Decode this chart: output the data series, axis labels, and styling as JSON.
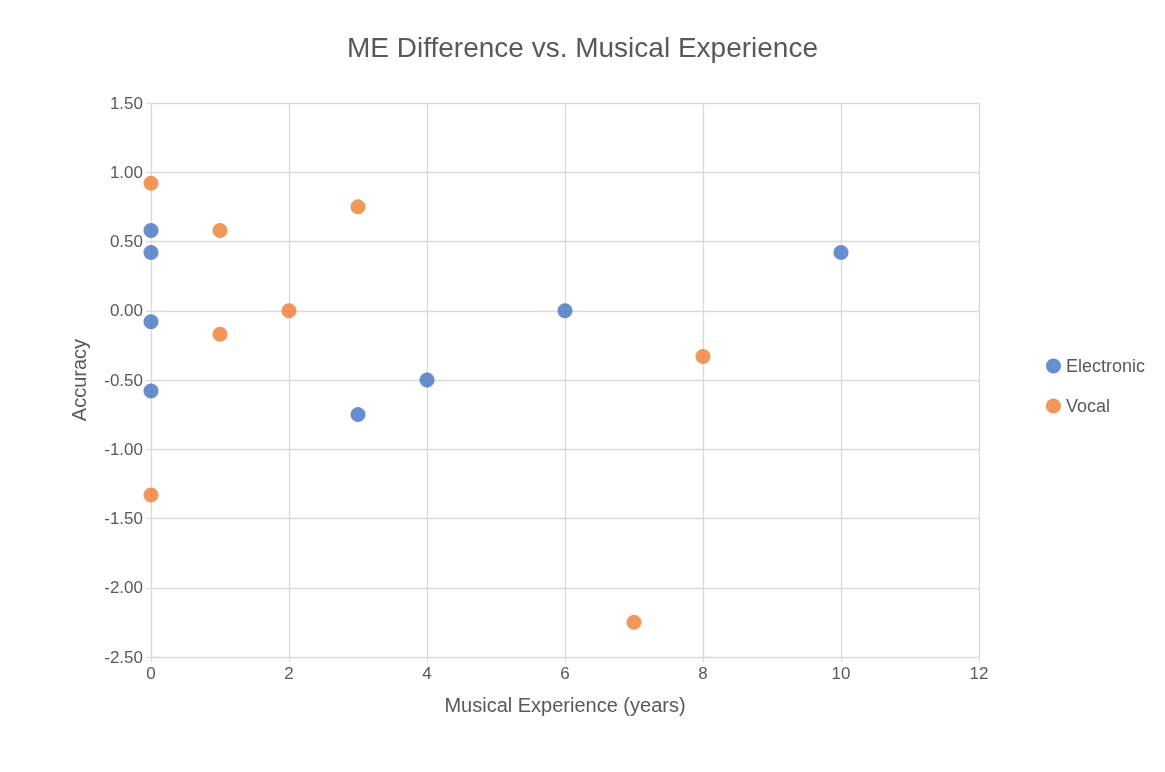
{
  "chart_data": {
    "type": "scatter",
    "title": "ME Difference vs. Musical Experience",
    "xlabel": "Musical Experience (years)",
    "ylabel": "Accuracy",
    "series": [
      {
        "name": "Electronic",
        "color": "#4472c4",
        "x": [
          0,
          0,
          0,
          0,
          3,
          4,
          6,
          10
        ],
        "values": [
          0.58,
          0.42,
          -0.08,
          -0.58,
          -0.75,
          -0.5,
          0,
          0.42
        ]
      },
      {
        "name": "Vocal",
        "color": "#ed7d31",
        "x": [
          0,
          1,
          3,
          1,
          2,
          0,
          8,
          7
        ],
        "values": [
          0.92,
          0.58,
          0.75,
          -0.17,
          0,
          -1.33,
          -0.33,
          -2.25
        ]
      }
    ],
    "xlim": [
      0,
      12
    ],
    "xticks": [
      0,
      2,
      4,
      6,
      8,
      10,
      12
    ],
    "ylim": [
      -2.5,
      1.5
    ],
    "yticks": [
      {
        "value": -2.5,
        "label": "-2.50"
      },
      {
        "value": -2,
        "label": "-2.00"
      },
      {
        "value": -1.5,
        "label": "-1.50"
      },
      {
        "value": -1,
        "label": "-1.00"
      },
      {
        "value": -0.5,
        "label": "-0.50"
      },
      {
        "value": 0,
        "label": "0.00"
      },
      {
        "value": 0.5,
        "label": "0.50"
      },
      {
        "value": 1,
        "label": "1.00"
      },
      {
        "value": 1.5,
        "label": "1.50"
      }
    ],
    "grid": true,
    "legend": "right",
    "marker": "circle"
  }
}
